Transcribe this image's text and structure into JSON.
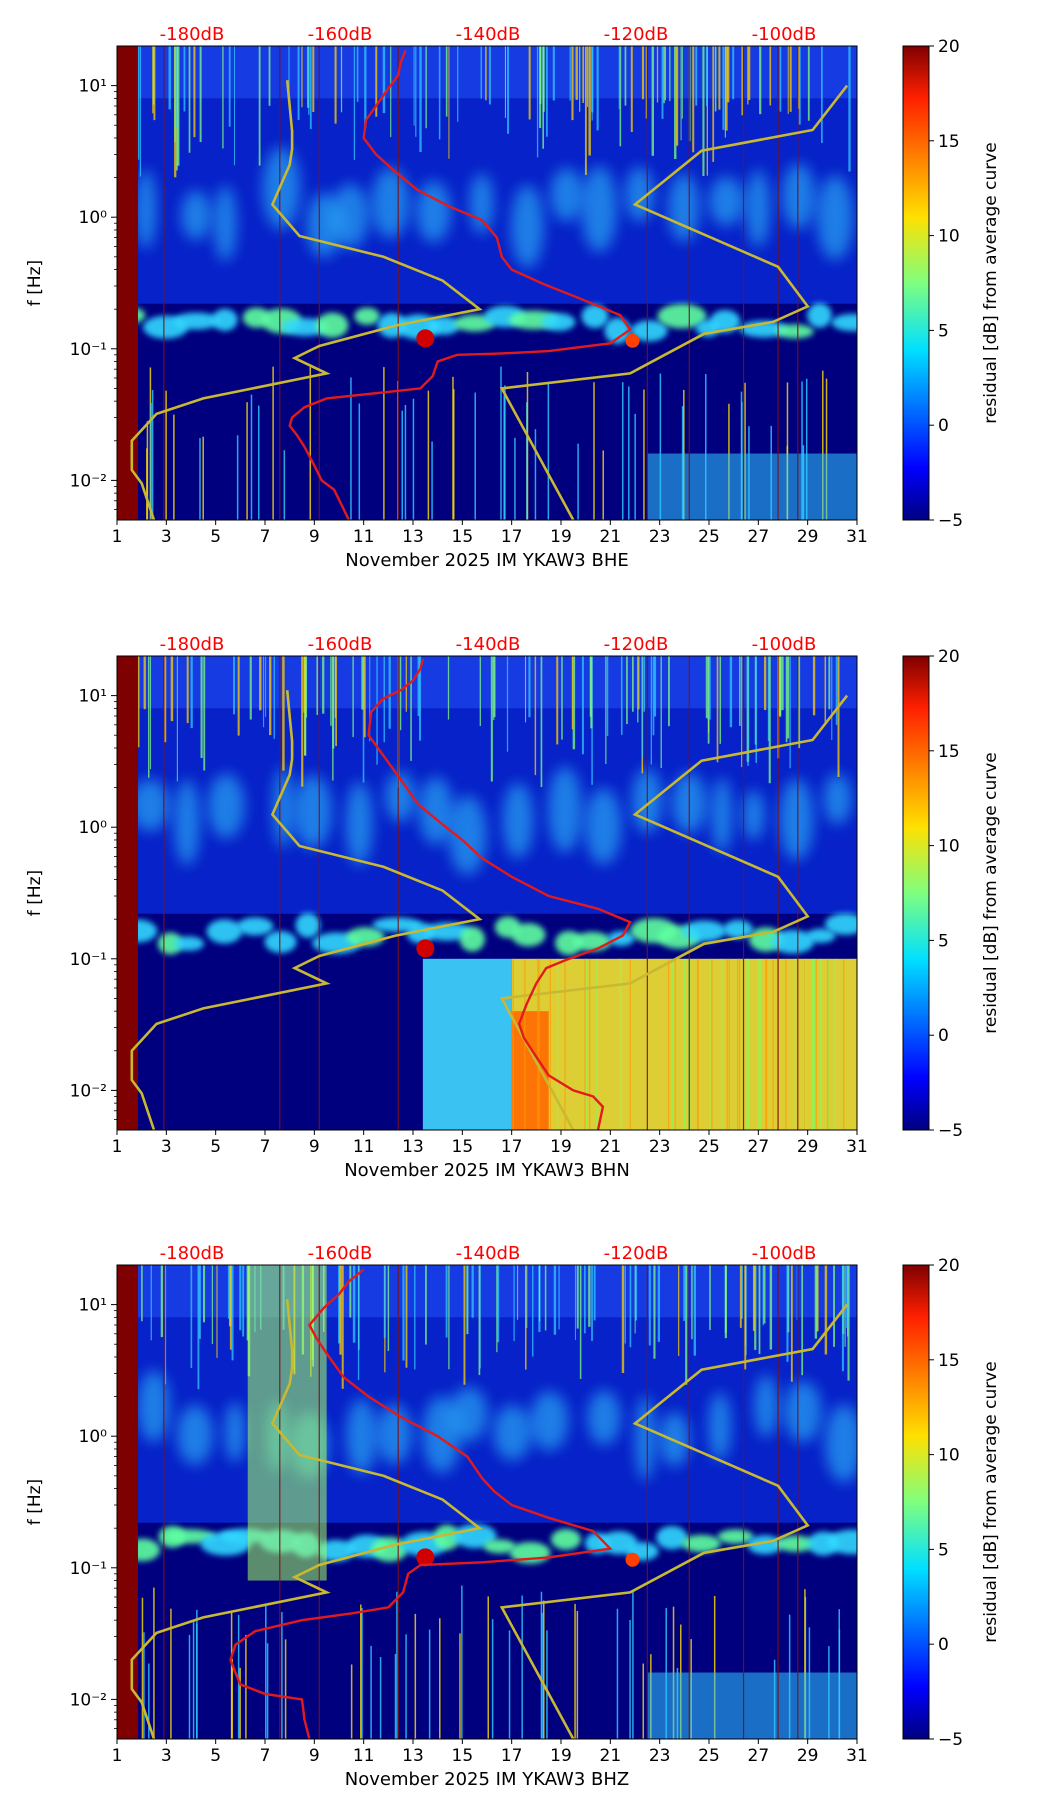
{
  "figure": {
    "db_scale_labels": [
      "-180dB",
      "-160dB",
      "-140dB",
      "-120dB",
      "-100dB"
    ],
    "x_tick_labels": [
      "1",
      "3",
      "5",
      "7",
      "9",
      "11",
      "13",
      "15",
      "17",
      "19",
      "21",
      "23",
      "25",
      "27",
      "29",
      "31"
    ],
    "y_tick_labels": [
      "10⁻²",
      "10⁻¹",
      "10⁰",
      "10¹"
    ],
    "y_label": "f [Hz]",
    "colorbar_label": "residual [dB] from average curve",
    "colorbar_ticks": [
      "−5",
      "0",
      "5",
      "10",
      "15",
      "20"
    ]
  },
  "colors": {
    "background_navy": "#00007f",
    "noise_model": "#c8b832",
    "median_curve": "#e31a1c",
    "db_label": "#ff0000"
  },
  "chart_data": [
    {
      "type": "heatmap",
      "station": "November 2025 IM YKAW3  BHE",
      "xlabel": "November 2025 IM YKAW3  BHE",
      "ylabel": "f [Hz]",
      "xlim": [
        1,
        31
      ],
      "ylim": [
        0.005,
        20
      ],
      "yscale": "log",
      "clim": [
        -5,
        20
      ],
      "median_curve": [
        [
          10.4,
          0.005
        ],
        [
          10.2,
          0.006
        ],
        [
          9.8,
          0.0085
        ],
        [
          9.3,
          0.01
        ],
        [
          9.0,
          0.013
        ],
        [
          8.6,
          0.018
        ],
        [
          8.3,
          0.022
        ],
        [
          8.0,
          0.026
        ],
        [
          8.1,
          0.03
        ],
        [
          8.6,
          0.036
        ],
        [
          9.5,
          0.042
        ],
        [
          11.5,
          0.046
        ],
        [
          13.3,
          0.05
        ],
        [
          13.8,
          0.062
        ],
        [
          14.0,
          0.08
        ],
        [
          14.8,
          0.09
        ],
        [
          16.5,
          0.092
        ],
        [
          18.5,
          0.096
        ],
        [
          21.0,
          0.11
        ],
        [
          21.8,
          0.14
        ],
        [
          21.4,
          0.18
        ],
        [
          19.8,
          0.24
        ],
        [
          18.3,
          0.31
        ],
        [
          17.0,
          0.4
        ],
        [
          16.6,
          0.5
        ],
        [
          16.4,
          0.7
        ],
        [
          15.8,
          0.95
        ],
        [
          14.5,
          1.2
        ],
        [
          13.2,
          1.6
        ],
        [
          12.3,
          2.2
        ],
        [
          11.5,
          3.0
        ],
        [
          11.0,
          4.0
        ],
        [
          11.1,
          5.5
        ],
        [
          11.5,
          7.0
        ],
        [
          12.0,
          9.5
        ],
        [
          12.4,
          12
        ],
        [
          12.5,
          15
        ],
        [
          12.7,
          18.5
        ]
      ],
      "noise_model_curve": [
        [
          2.5,
          0.005
        ],
        [
          2.0,
          0.0095
        ],
        [
          1.6,
          0.012
        ],
        [
          1.6,
          0.02
        ],
        [
          2.6,
          0.032
        ],
        [
          4.5,
          0.042
        ],
        [
          9.5,
          0.065
        ],
        [
          8.2,
          0.085
        ],
        [
          9.2,
          0.105
        ],
        [
          12.3,
          0.15
        ],
        [
          15.7,
          0.2
        ],
        [
          14.2,
          0.33
        ],
        [
          11.8,
          0.5
        ],
        [
          8.4,
          0.72
        ],
        [
          7.3,
          1.25
        ],
        [
          8.0,
          2.5
        ],
        [
          8.1,
          3.3
        ],
        [
          8.1,
          4.5
        ],
        [
          7.9,
          11
        ]
      ],
      "noise_model_curve_2": [
        [
          19.5,
          0.005
        ],
        [
          16.6,
          0.05
        ],
        [
          21.8,
          0.065
        ],
        [
          24.8,
          0.13
        ],
        [
          27.6,
          0.16
        ],
        [
          29.0,
          0.21
        ],
        [
          27.8,
          0.42
        ],
        [
          22.0,
          1.25
        ],
        [
          24.7,
          3.2
        ],
        [
          29.2,
          4.6
        ],
        [
          30.6,
          10
        ]
      ]
    },
    {
      "type": "heatmap",
      "station": "November 2025 IM YKAW3  BHN",
      "xlabel": "November 2025 IM YKAW3  BHN",
      "ylabel": "f [Hz]",
      "xlim": [
        1,
        31
      ],
      "ylim": [
        0.005,
        20
      ],
      "yscale": "log",
      "clim": [
        -5,
        20
      ],
      "median_curve": [
        [
          20.5,
          0.005
        ],
        [
          20.7,
          0.0075
        ],
        [
          20.3,
          0.009
        ],
        [
          19.5,
          0.01
        ],
        [
          18.5,
          0.013
        ],
        [
          18.0,
          0.018
        ],
        [
          17.5,
          0.025
        ],
        [
          17.3,
          0.032
        ],
        [
          17.6,
          0.045
        ],
        [
          18.0,
          0.065
        ],
        [
          18.4,
          0.085
        ],
        [
          19.2,
          0.098
        ],
        [
          20.5,
          0.12
        ],
        [
          21.5,
          0.15
        ],
        [
          21.8,
          0.19
        ],
        [
          20.5,
          0.24
        ],
        [
          18.5,
          0.3
        ],
        [
          17.0,
          0.42
        ],
        [
          15.8,
          0.58
        ],
        [
          15.0,
          0.8
        ],
        [
          14.2,
          1.05
        ],
        [
          13.2,
          1.5
        ],
        [
          12.5,
          2.3
        ],
        [
          11.8,
          3.5
        ],
        [
          11.2,
          5
        ],
        [
          11.3,
          7.5
        ],
        [
          11.8,
          9.5
        ],
        [
          12.5,
          11
        ],
        [
          13.0,
          13
        ],
        [
          13.3,
          16
        ],
        [
          13.4,
          19
        ]
      ],
      "noise_model_curve": [
        [
          2.5,
          0.005
        ],
        [
          2.0,
          0.0095
        ],
        [
          1.6,
          0.012
        ],
        [
          1.6,
          0.02
        ],
        [
          2.6,
          0.032
        ],
        [
          4.5,
          0.042
        ],
        [
          9.5,
          0.065
        ],
        [
          8.2,
          0.085
        ],
        [
          9.2,
          0.105
        ],
        [
          12.3,
          0.15
        ],
        [
          15.7,
          0.2
        ],
        [
          14.2,
          0.33
        ],
        [
          11.8,
          0.5
        ],
        [
          8.4,
          0.72
        ],
        [
          7.3,
          1.25
        ],
        [
          8.0,
          2.5
        ],
        [
          8.1,
          3.3
        ],
        [
          8.1,
          4.5
        ],
        [
          7.9,
          11
        ]
      ],
      "noise_model_curve_2": [
        [
          19.5,
          0.005
        ],
        [
          16.6,
          0.05
        ],
        [
          21.8,
          0.065
        ],
        [
          24.8,
          0.13
        ],
        [
          27.6,
          0.16
        ],
        [
          29.0,
          0.21
        ],
        [
          27.8,
          0.42
        ],
        [
          22.0,
          1.25
        ],
        [
          24.7,
          3.2
        ],
        [
          29.2,
          4.6
        ],
        [
          30.6,
          10
        ]
      ]
    },
    {
      "type": "heatmap",
      "station": "November 2025 IM YKAW3  BHZ",
      "xlabel": "November 2025 IM YKAW3  BHZ",
      "ylabel": "f [Hz]",
      "xlim": [
        1,
        31
      ],
      "ylim": [
        0.005,
        20
      ],
      "yscale": "log",
      "clim": [
        -5,
        20
      ],
      "median_curve": [
        [
          8.8,
          0.005
        ],
        [
          8.6,
          0.007
        ],
        [
          8.5,
          0.01
        ],
        [
          7.0,
          0.011
        ],
        [
          6.0,
          0.013
        ],
        [
          5.8,
          0.016
        ],
        [
          5.6,
          0.02
        ],
        [
          5.8,
          0.026
        ],
        [
          6.6,
          0.033
        ],
        [
          8.5,
          0.04
        ],
        [
          10.5,
          0.045
        ],
        [
          12.0,
          0.05
        ],
        [
          12.6,
          0.065
        ],
        [
          12.8,
          0.09
        ],
        [
          13.3,
          0.105
        ],
        [
          15.8,
          0.11
        ],
        [
          18.5,
          0.12
        ],
        [
          21.0,
          0.14
        ],
        [
          20.3,
          0.19
        ],
        [
          18.5,
          0.24
        ],
        [
          17.0,
          0.3
        ],
        [
          16.3,
          0.38
        ],
        [
          15.8,
          0.48
        ],
        [
          15.2,
          0.7
        ],
        [
          14.0,
          1.0
        ],
        [
          12.5,
          1.4
        ],
        [
          11.2,
          2.0
        ],
        [
          10.2,
          2.8
        ],
        [
          9.6,
          4.0
        ],
        [
          9.1,
          5.5
        ],
        [
          8.8,
          7.0
        ],
        [
          9.4,
          9.5
        ],
        [
          10.0,
          12
        ],
        [
          10.4,
          15
        ],
        [
          11.0,
          18.5
        ]
      ],
      "noise_model_curve": [
        [
          2.5,
          0.005
        ],
        [
          2.0,
          0.0095
        ],
        [
          1.6,
          0.012
        ],
        [
          1.6,
          0.02
        ],
        [
          2.6,
          0.032
        ],
        [
          4.5,
          0.042
        ],
        [
          9.5,
          0.065
        ],
        [
          8.2,
          0.085
        ],
        [
          9.2,
          0.105
        ],
        [
          12.3,
          0.15
        ],
        [
          15.7,
          0.2
        ],
        [
          14.2,
          0.33
        ],
        [
          11.8,
          0.5
        ],
        [
          8.4,
          0.72
        ],
        [
          7.3,
          1.25
        ],
        [
          8.0,
          2.5
        ],
        [
          8.1,
          3.3
        ],
        [
          8.1,
          4.5
        ],
        [
          7.9,
          11
        ]
      ],
      "noise_model_curve_2": [
        [
          19.5,
          0.005
        ],
        [
          16.6,
          0.05
        ],
        [
          21.8,
          0.065
        ],
        [
          24.8,
          0.13
        ],
        [
          27.6,
          0.16
        ],
        [
          29.0,
          0.21
        ],
        [
          27.8,
          0.42
        ],
        [
          22.0,
          1.25
        ],
        [
          24.7,
          3.2
        ],
        [
          29.2,
          4.6
        ],
        [
          30.6,
          10
        ]
      ]
    }
  ]
}
